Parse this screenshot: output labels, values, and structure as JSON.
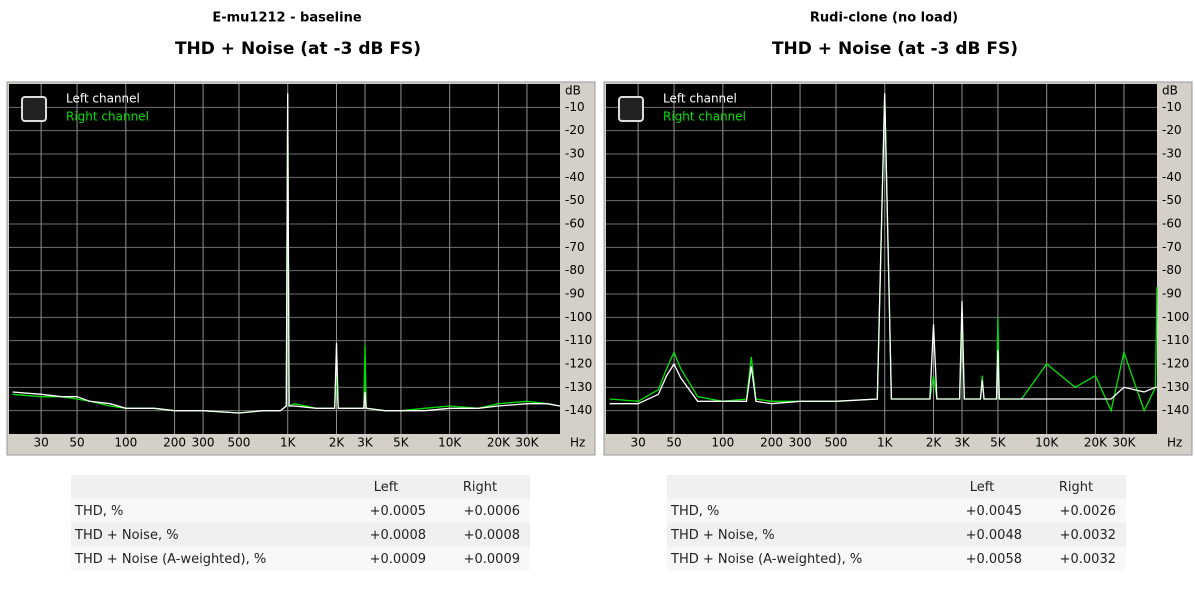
{
  "chart_data": [
    {
      "type": "line",
      "title": "E-mu1212 - baseline",
      "subtitle": "THD + Noise (at -3 dB FS)",
      "y_label": "dB",
      "x_label": "Hz",
      "log_x": true,
      "grid": true,
      "legend": "upper left",
      "xlim": [
        19,
        48000
      ],
      "ylim": [
        -150,
        0
      ],
      "xticks": [
        30,
        50,
        100,
        200,
        300,
        500,
        {
          "value": 1000,
          "label": "1K"
        },
        {
          "value": 2000,
          "label": "2K"
        },
        {
          "value": 3000,
          "label": "3K"
        },
        {
          "value": 5000,
          "label": "5K"
        },
        {
          "value": 10000,
          "label": "10K"
        },
        {
          "value": 20000,
          "label": "20K"
        },
        {
          "value": 30000,
          "label": "30K"
        }
      ],
      "yticks": [
        -10,
        -20,
        -30,
        -40,
        -50,
        -60,
        -70,
        -80,
        -90,
        -100,
        -110,
        -120,
        -130,
        -140
      ],
      "x": [
        20,
        30,
        40,
        50,
        60,
        80,
        100,
        150,
        200,
        300,
        500,
        700,
        900,
        980,
        1000,
        1020,
        1100,
        1500,
        1950,
        2000,
        2050,
        2500,
        2950,
        3000,
        3050,
        4000,
        5000,
        7000,
        10000,
        15000,
        20000,
        30000,
        40000,
        48000
      ],
      "series": [
        {
          "name": "Left channel",
          "color": "#ffffff",
          "values": [
            -132,
            -133,
            -134,
            -134,
            -136,
            -137,
            -139,
            -139,
            -140,
            -140,
            -141,
            -140,
            -140,
            -138,
            -4,
            -138,
            -138,
            -139,
            -139,
            -111,
            -139,
            -139,
            -139,
            -132,
            -139,
            -140,
            -140,
            -140,
            -139,
            -139,
            -138,
            -137,
            -137,
            -138
          ]
        },
        {
          "name": "Right channel",
          "color": "#00e000",
          "values": [
            -133,
            -134,
            -134,
            -135,
            -136,
            -138,
            -139,
            -139,
            -140,
            -140,
            -141,
            -140,
            -140,
            -138,
            -4,
            -138,
            -137,
            -139,
            -139,
            -125,
            -139,
            -139,
            -139,
            -112,
            -139,
            -140,
            -140,
            -139,
            -138,
            -139,
            -137,
            -136,
            -137,
            -138
          ]
        }
      ]
    },
    {
      "type": "line",
      "title": "Rudi-clone (no load)",
      "subtitle": "THD + Noise (at -3 dB FS)",
      "y_label": "dB",
      "x_label": "Hz",
      "log_x": true,
      "grid": true,
      "legend": "upper left",
      "xlim": [
        19,
        48000
      ],
      "ylim": [
        -150,
        0
      ],
      "xticks": [
        30,
        50,
        100,
        200,
        300,
        500,
        {
          "value": 1000,
          "label": "1K"
        },
        {
          "value": 2000,
          "label": "2K"
        },
        {
          "value": 3000,
          "label": "3K"
        },
        {
          "value": 5000,
          "label": "5K"
        },
        {
          "value": 10000,
          "label": "10K"
        },
        {
          "value": 20000,
          "label": "20K"
        },
        {
          "value": 30000,
          "label": "30K"
        }
      ],
      "yticks": [
        -10,
        -20,
        -30,
        -40,
        -50,
        -60,
        -70,
        -80,
        -90,
        -100,
        -110,
        -120,
        -130,
        -140
      ],
      "x": [
        20,
        30,
        40,
        45,
        50,
        55,
        70,
        100,
        140,
        150,
        160,
        200,
        300,
        500,
        900,
        1000,
        1100,
        1900,
        2000,
        2100,
        2900,
        3000,
        3100,
        3900,
        4000,
        4100,
        4900,
        5000,
        5100,
        7000,
        10000,
        15000,
        20000,
        25000,
        30000,
        40000,
        47000,
        48000
      ],
      "series": [
        {
          "name": "Left channel",
          "color": "#ffffff",
          "values": [
            -137,
            -137,
            -133,
            -125,
            -120,
            -126,
            -136,
            -136,
            -136,
            -121,
            -136,
            -137,
            -136,
            -136,
            -135,
            -4,
            -135,
            -135,
            -103,
            -135,
            -135,
            -93,
            -135,
            -135,
            -127,
            -135,
            -135,
            -114,
            -135,
            -135,
            -135,
            -135,
            -135,
            -135,
            -130,
            -132,
            -130,
            -130
          ]
        },
        {
          "name": "Right channel",
          "color": "#00e000",
          "values": [
            -135,
            -136,
            -131,
            -122,
            -115,
            -122,
            -134,
            -136,
            -135,
            -117,
            -135,
            -136,
            -136,
            -136,
            -135,
            -4,
            -135,
            -135,
            -125,
            -135,
            -135,
            -100,
            -135,
            -135,
            -125,
            -135,
            -135,
            -100,
            -135,
            -135,
            -120,
            -130,
            -125,
            -140,
            -115,
            -140,
            -130,
            -87
          ]
        }
      ]
    }
  ],
  "tables": [
    {
      "columns": [
        "Left",
        "Right"
      ],
      "rows": [
        [
          "THD, %",
          "+0.0005",
          "+0.0006"
        ],
        [
          "THD + Noise, %",
          "+0.0008",
          "+0.0008"
        ],
        [
          "THD + Noise (A-weighted), %",
          "+0.0009",
          "+0.0009"
        ]
      ]
    },
    {
      "columns": [
        "Left",
        "Right"
      ],
      "rows": [
        [
          "THD, %",
          "+0.0045",
          "+0.0026"
        ],
        [
          "THD + Noise, %",
          "+0.0048",
          "+0.0032"
        ],
        [
          "THD + Noise (A-weighted), %",
          "+0.0058",
          "+0.0032"
        ]
      ]
    }
  ]
}
